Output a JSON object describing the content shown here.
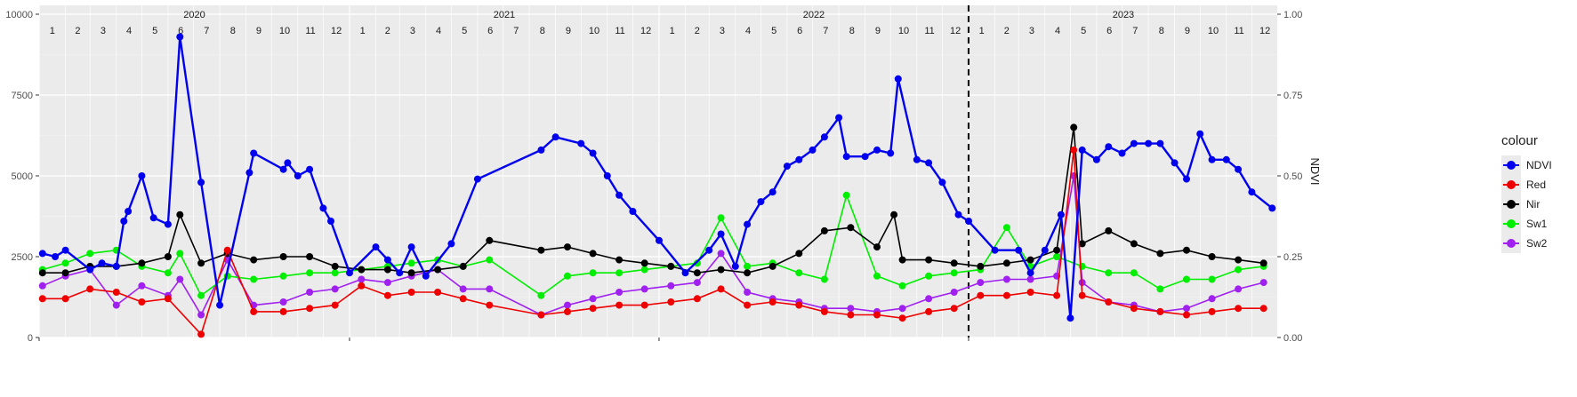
{
  "chart_data": {
    "type": "line",
    "legend": {
      "title": "colour",
      "position": "right"
    },
    "y_left": {
      "ticks": [
        "0",
        "2500",
        "5000",
        "7500",
        "10000"
      ],
      "ylim": [
        0,
        10000
      ]
    },
    "y_right": {
      "label": "NDVI",
      "ticks": [
        "0.00",
        "0.25",
        "0.50",
        "0.75",
        "1.00"
      ],
      "ylim": [
        0,
        1
      ]
    },
    "xlim": [
      "2020-01-01",
      "2023-12-31"
    ],
    "years": [
      "2020",
      "2021",
      "2022",
      "2023"
    ],
    "month_labels": [
      "1",
      "2",
      "3",
      "4",
      "5",
      "6",
      "7",
      "8",
      "9",
      "10",
      "11",
      "12"
    ],
    "grid": true,
    "vline": {
      "date": "2023-01-01",
      "style": "dashed"
    },
    "colors": {
      "NDVI": "#0000ee",
      "Red": "#ee0000",
      "Nir": "#000000",
      "Sw1": "#00ee00",
      "Sw2": "#a020f0"
    },
    "series": [
      {
        "name": "NDVI",
        "axis": "right",
        "x": [
          "2020-01-05",
          "2020-01-20",
          "2020-02-01",
          "2020-03-01",
          "2020-03-15",
          "2020-04-01",
          "2020-04-10",
          "2020-04-15",
          "2020-05-01",
          "2020-05-15",
          "2020-06-01",
          "2020-06-15",
          "2020-07-10",
          "2020-08-01",
          "2020-09-05",
          "2020-09-10",
          "2020-10-15",
          "2020-10-20",
          "2020-11-01",
          "2020-11-15",
          "2020-12-01",
          "2020-12-10",
          "2021-01-01",
          "2021-02-01",
          "2021-02-15",
          "2021-03-01",
          "2021-03-15",
          "2021-04-01",
          "2021-05-01",
          "2021-06-01",
          "2021-08-15",
          "2021-09-01",
          "2021-10-01",
          "2021-10-15",
          "2021-11-01",
          "2021-11-15",
          "2021-12-01",
          "2022-01-01",
          "2022-02-01",
          "2022-03-01",
          "2022-03-15",
          "2022-04-01",
          "2022-04-15",
          "2022-05-01",
          "2022-05-15",
          "2022-06-01",
          "2022-06-15",
          "2022-07-01",
          "2022-07-15",
          "2022-08-01",
          "2022-08-10",
          "2022-09-01",
          "2022-09-15",
          "2022-10-01",
          "2022-10-10",
          "2022-11-01",
          "2022-11-15",
          "2022-12-01",
          "2022-12-20",
          "2023-01-01",
          "2023-02-01",
          "2023-03-01",
          "2023-03-15",
          "2023-04-01",
          "2023-04-20",
          "2023-05-01",
          "2023-05-15",
          "2023-06-01",
          "2023-06-15",
          "2023-07-01",
          "2023-07-15",
          "2023-08-01",
          "2023-08-15",
          "2023-09-01",
          "2023-09-15",
          "2023-10-01",
          "2023-10-15",
          "2023-11-01",
          "2023-11-15",
          "2023-12-01",
          "2023-12-25"
        ],
        "values": [
          0.26,
          0.25,
          0.27,
          0.21,
          0.23,
          0.22,
          0.36,
          0.39,
          0.5,
          0.37,
          0.35,
          0.93,
          0.48,
          0.1,
          0.51,
          0.57,
          0.52,
          0.54,
          0.5,
          0.52,
          0.4,
          0.36,
          0.2,
          0.28,
          0.24,
          0.2,
          0.28,
          0.19,
          0.29,
          0.49,
          0.58,
          0.62,
          0.6,
          0.57,
          0.5,
          0.44,
          0.39,
          0.3,
          0.2,
          0.27,
          0.32,
          0.22,
          0.35,
          0.42,
          0.45,
          0.53,
          0.55,
          0.58,
          0.62,
          0.68,
          0.56,
          0.56,
          0.58,
          0.57,
          0.8,
          0.55,
          0.54,
          0.48,
          0.38,
          0.36,
          0.27,
          0.27,
          0.2,
          0.27,
          0.38,
          0.06,
          0.58,
          0.55,
          0.59,
          0.57,
          0.6,
          0.6,
          0.6,
          0.54,
          0.49,
          0.63,
          0.55,
          0.55,
          0.52,
          0.45,
          0.4
        ]
      },
      {
        "name": "Red",
        "axis": "left",
        "x": [
          "2020-01-05",
          "2020-02-01",
          "2020-03-01",
          "2020-04-01",
          "2020-05-01",
          "2020-06-01",
          "2020-07-10",
          "2020-08-10",
          "2020-09-10",
          "2020-10-15",
          "2020-11-15",
          "2020-12-15",
          "2021-01-15",
          "2021-02-15",
          "2021-03-15",
          "2021-04-15",
          "2021-05-15",
          "2021-06-15",
          "2021-08-15",
          "2021-09-15",
          "2021-10-15",
          "2021-11-15",
          "2021-12-15",
          "2022-01-15",
          "2022-02-15",
          "2022-03-15",
          "2022-04-15",
          "2022-05-15",
          "2022-06-15",
          "2022-07-15",
          "2022-08-15",
          "2022-09-15",
          "2022-10-15",
          "2022-11-15",
          "2022-12-15",
          "2023-01-15",
          "2023-02-15",
          "2023-03-15",
          "2023-04-15",
          "2023-05-05",
          "2023-05-15",
          "2023-06-15",
          "2023-07-15",
          "2023-08-15",
          "2023-09-15",
          "2023-10-15",
          "2023-11-15",
          "2023-12-15"
        ],
        "values": [
          1200,
          1200,
          1500,
          1400,
          1100,
          1200,
          100,
          2700,
          800,
          800,
          900,
          1000,
          1600,
          1300,
          1400,
          1400,
          1200,
          1000,
          700,
          800,
          900,
          1000,
          1000,
          1100,
          1200,
          1500,
          1000,
          1100,
          1000,
          800,
          700,
          700,
          600,
          800,
          900,
          1300,
          1300,
          1400,
          1300,
          5800,
          1300,
          1100,
          900,
          800,
          700,
          800,
          900,
          900
        ]
      },
      {
        "name": "Nir",
        "axis": "left",
        "x": [
          "2020-01-05",
          "2020-02-01",
          "2020-03-01",
          "2020-04-01",
          "2020-05-01",
          "2020-06-01",
          "2020-06-15",
          "2020-07-10",
          "2020-08-10",
          "2020-09-10",
          "2020-10-15",
          "2020-11-15",
          "2020-12-15",
          "2021-01-15",
          "2021-02-15",
          "2021-03-15",
          "2021-04-15",
          "2021-05-15",
          "2021-06-15",
          "2021-08-15",
          "2021-09-15",
          "2021-10-15",
          "2021-11-15",
          "2021-12-15",
          "2022-01-15",
          "2022-02-15",
          "2022-03-15",
          "2022-04-15",
          "2022-05-15",
          "2022-06-15",
          "2022-07-15",
          "2022-08-15",
          "2022-09-15",
          "2022-10-05",
          "2022-10-15",
          "2022-11-15",
          "2022-12-15",
          "2023-01-15",
          "2023-02-15",
          "2023-03-15",
          "2023-04-15",
          "2023-05-05",
          "2023-05-15",
          "2023-06-15",
          "2023-07-15",
          "2023-08-15",
          "2023-09-15",
          "2023-10-15",
          "2023-11-15",
          "2023-12-15"
        ],
        "values": [
          2000,
          2000,
          2200,
          2200,
          2300,
          2500,
          3800,
          2300,
          2600,
          2400,
          2500,
          2500,
          2200,
          2100,
          2100,
          2000,
          2100,
          2200,
          3000,
          2700,
          2800,
          2600,
          2400,
          2300,
          2200,
          2000,
          2100,
          2000,
          2200,
          2600,
          3300,
          3400,
          2800,
          3800,
          2400,
          2400,
          2300,
          2200,
          2300,
          2400,
          2700,
          6500,
          2900,
          3300,
          2900,
          2600,
          2700,
          2500,
          2400,
          2300
        ]
      },
      {
        "name": "Sw1",
        "axis": "left",
        "x": [
          "2020-01-05",
          "2020-02-01",
          "2020-03-01",
          "2020-04-01",
          "2020-05-01",
          "2020-06-01",
          "2020-06-15",
          "2020-07-10",
          "2020-08-10",
          "2020-09-10",
          "2020-10-15",
          "2020-11-15",
          "2020-12-15",
          "2021-01-15",
          "2021-02-15",
          "2021-03-15",
          "2021-04-15",
          "2021-05-15",
          "2021-06-15",
          "2021-08-15",
          "2021-09-15",
          "2021-10-15",
          "2021-11-15",
          "2021-12-15",
          "2022-01-15",
          "2022-02-15",
          "2022-03-15",
          "2022-04-15",
          "2022-05-15",
          "2022-06-15",
          "2022-07-15",
          "2022-08-10",
          "2022-09-15",
          "2022-10-15",
          "2022-11-15",
          "2022-12-15",
          "2023-01-15",
          "2023-02-15",
          "2023-03-15",
          "2023-04-15",
          "2023-05-15",
          "2023-06-15",
          "2023-07-15",
          "2023-08-15",
          "2023-09-15",
          "2023-10-15",
          "2023-11-15",
          "2023-12-15"
        ],
        "values": [
          2100,
          2300,
          2600,
          2700,
          2200,
          2000,
          2600,
          1300,
          1900,
          1800,
          1900,
          2000,
          2000,
          2100,
          2200,
          2300,
          2400,
          2200,
          2400,
          1300,
          1900,
          2000,
          2000,
          2100,
          2200,
          2300,
          3700,
          2200,
          2300,
          2000,
          1800,
          4400,
          1900,
          1600,
          1900,
          2000,
          2100,
          3400,
          2200,
          2500,
          2200,
          2000,
          2000,
          1500,
          1800,
          1800,
          2100,
          2200
        ]
      },
      {
        "name": "Sw2",
        "axis": "left",
        "x": [
          "2020-01-05",
          "2020-02-01",
          "2020-03-01",
          "2020-04-01",
          "2020-05-01",
          "2020-06-01",
          "2020-06-15",
          "2020-07-10",
          "2020-08-10",
          "2020-09-10",
          "2020-10-15",
          "2020-11-15",
          "2020-12-15",
          "2021-01-15",
          "2021-02-15",
          "2021-03-15",
          "2021-04-15",
          "2021-05-15",
          "2021-06-15",
          "2021-08-15",
          "2021-09-15",
          "2021-10-15",
          "2021-11-15",
          "2021-12-15",
          "2022-01-15",
          "2022-02-15",
          "2022-03-15",
          "2022-04-15",
          "2022-05-15",
          "2022-06-15",
          "2022-07-15",
          "2022-08-15",
          "2022-09-15",
          "2022-10-15",
          "2022-11-15",
          "2022-12-15",
          "2023-01-15",
          "2023-02-15",
          "2023-03-15",
          "2023-04-15",
          "2023-05-05",
          "2023-05-15",
          "2023-06-15",
          "2023-07-15",
          "2023-08-15",
          "2023-09-15",
          "2023-10-15",
          "2023-11-15",
          "2023-12-15"
        ],
        "values": [
          1600,
          1900,
          2100,
          1000,
          1600,
          1300,
          1800,
          700,
          2400,
          1000,
          1100,
          1400,
          1500,
          1800,
          1700,
          1900,
          2100,
          1500,
          1500,
          700,
          1000,
          1200,
          1400,
          1500,
          1600,
          1700,
          2600,
          1400,
          1200,
          1100,
          900,
          900,
          800,
          900,
          1200,
          1400,
          1700,
          1800,
          1800,
          1900,
          5000,
          1700,
          1100,
          1000,
          800,
          900,
          1200,
          1500,
          1700
        ]
      }
    ]
  }
}
